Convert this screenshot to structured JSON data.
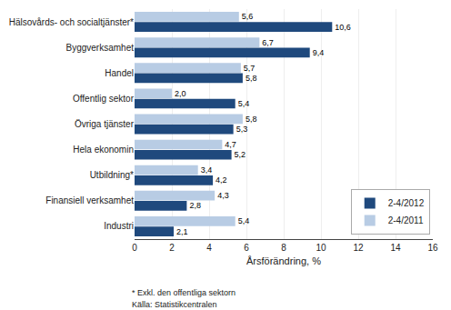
{
  "chart_data": {
    "type": "bar",
    "orientation": "horizontal",
    "categories": [
      "Hälsovårds- och socialtjänster*",
      "Byggverksamhet",
      "Handel",
      "Offentlig sektor",
      "Övriga tjänster",
      "Hela ekonomin",
      "Utbildning*",
      "Finansiell verksamhet",
      "Industri"
    ],
    "series": [
      {
        "name": "2-4/2012",
        "color": "#1F497D",
        "values": [
          10.6,
          9.4,
          5.8,
          5.4,
          5.3,
          5.2,
          4.2,
          2.8,
          2.1
        ],
        "value_labels": [
          "10,6",
          "9,4",
          "5,8",
          "5,4",
          "5,3",
          "5,2",
          "4,2",
          "2,8",
          "2,1"
        ]
      },
      {
        "name": "2-4/2011",
        "color": "#B8CCE4",
        "values": [
          5.6,
          6.7,
          5.7,
          2.0,
          5.8,
          4.7,
          3.4,
          4.3,
          5.4
        ],
        "value_labels": [
          "5,6",
          "6,7",
          "5,7",
          "2,0",
          "5,8",
          "4,7",
          "3,4",
          "4,3",
          "5,4"
        ]
      }
    ],
    "xlabel": "Årsförändring, %",
    "xlim": [
      0,
      16
    ],
    "xticks": [
      0,
      2,
      4,
      6,
      8,
      10,
      12,
      14,
      16
    ],
    "grid": true,
    "legend": "lower right",
    "data_labels": true,
    "annotations": [
      "* Exkl. den offentliga sektorn",
      "Källa: Statistikcentralen"
    ]
  }
}
